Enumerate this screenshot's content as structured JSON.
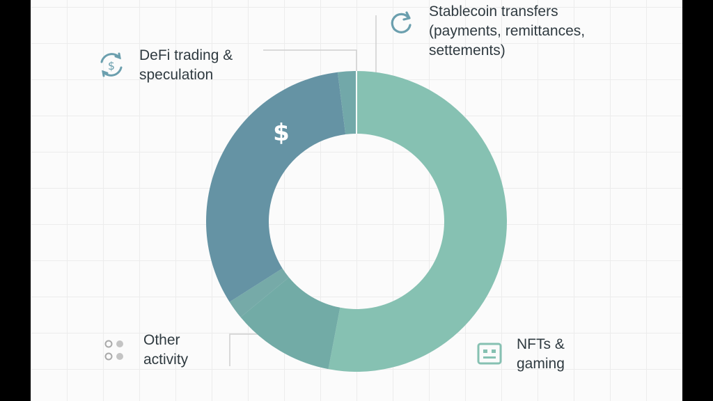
{
  "chart_data": {
    "type": "pie",
    "donut": true,
    "slices": [
      {
        "label": "Stablecoin transfers (payments, remittances, settements)",
        "value": 53,
        "color": "#86c1b2"
      },
      {
        "label": "NFTs & gaming",
        "value": 11,
        "color": "#72aba6"
      },
      {
        "label": "Other activity",
        "value": 2,
        "color": "#76aaa8"
      },
      {
        "label": "DeFi trading & speculation",
        "value": 32,
        "color": "#6593a4"
      },
      {
        "label": "",
        "value": 2,
        "color": "#72a8a9"
      }
    ]
  },
  "labels": {
    "stablecoin": [
      "Stablecoin transfers",
      "(payments, remittances,",
      "settements)"
    ],
    "defi": [
      "DeFi trading &",
      "speculation"
    ],
    "nfts": [
      "NFTs &",
      "gaming"
    ],
    "other": [
      "Other",
      "activity"
    ]
  },
  "slice_glyph": "$",
  "icons": {
    "stablecoin": "refresh-icon",
    "defi": "dollar-cycle-icon",
    "nfts": "game-controller-icon",
    "other": "dots-icon"
  }
}
